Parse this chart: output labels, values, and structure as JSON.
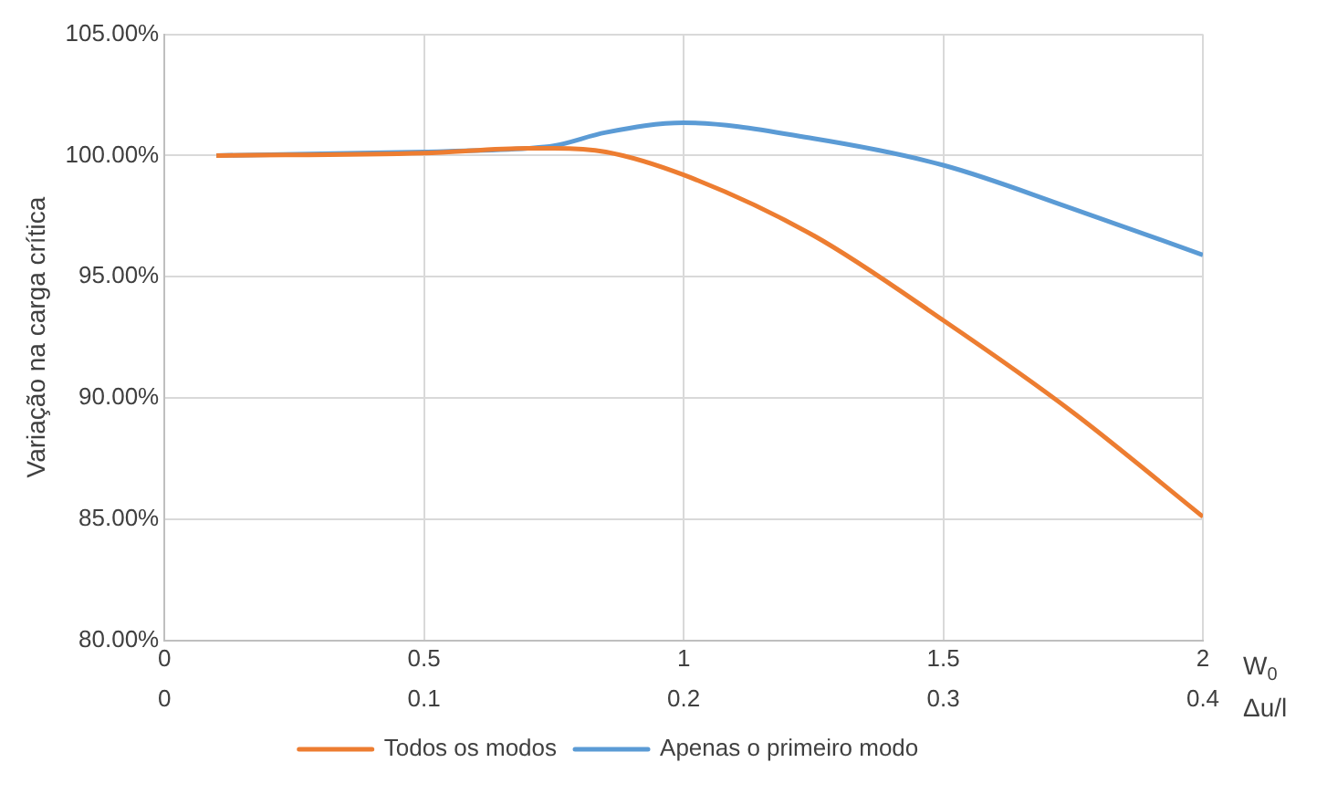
{
  "chart_data": {
    "type": "line",
    "ylabel": "Variação na carga crítica",
    "xlabel": "W$_{0}$",
    "x2label": "Δu/l",
    "xlim": [
      0,
      2
    ],
    "xticks": [
      0,
      0.5,
      1,
      1.5,
      2
    ],
    "x2lim": [
      0,
      0.4
    ],
    "x2ticks": [
      0,
      0.1,
      0.2,
      0.3,
      0.4
    ],
    "ylim": [
      80,
      105
    ],
    "yticks": [
      {
        "value": 80,
        "label": "80.00%"
      },
      {
        "value": 85,
        "label": "85.00%"
      },
      {
        "value": 90,
        "label": "90.00%"
      },
      {
        "value": 95,
        "label": "95.00%"
      },
      {
        "value": 100,
        "label": "100.00%"
      },
      {
        "value": 105,
        "label": "105.00%"
      }
    ],
    "x": [
      0.1,
      0.5,
      0.7,
      0.75,
      0.85,
      1.0,
      1.25,
      1.5,
      1.75,
      2.0
    ],
    "series": [
      {
        "name": "Apenas o primeiro modo",
        "color": "#5b9bd5",
        "values": [
          100.0,
          100.15,
          100.3,
          100.4,
          100.95,
          101.35,
          100.7,
          99.6,
          97.8,
          95.9
        ]
      },
      {
        "name": "Todos os modos",
        "color": "#ed7d31",
        "values": [
          100.0,
          100.1,
          100.3,
          100.3,
          100.15,
          99.2,
          96.7,
          93.2,
          89.4,
          85.1
        ]
      }
    ],
    "grid": true,
    "legend": "bottom",
    "marker": "none",
    "line_style": "solid"
  }
}
